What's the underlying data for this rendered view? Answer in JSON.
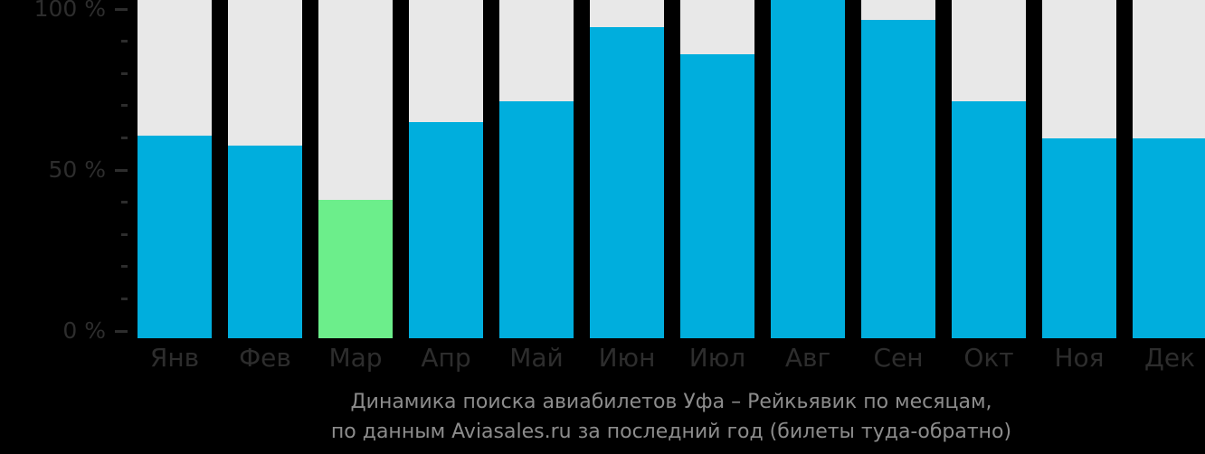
{
  "chart_data": {
    "type": "bar",
    "title": "Динамика поиска авиабилетов Уфа – Рейкьявик по месяцам, по данным Aviasales.ru за последний год (билеты туда-обратно)",
    "categories": [
      "Янв",
      "Фев",
      "Мар",
      "Апр",
      "Май",
      "Июн",
      "Июл",
      "Авг",
      "Сен",
      "Окт",
      "Ноя",
      "Дек"
    ],
    "values": [
      60,
      57,
      41,
      64,
      70,
      92,
      84,
      100,
      94,
      70,
      59,
      59
    ],
    "unit": "%",
    "xlabel": "",
    "ylabel": "",
    "ylim": [
      0,
      100
    ],
    "grid": false,
    "legend": null,
    "highlight_category": "Мар",
    "y_ticks_major": [
      {
        "value": 100,
        "label": "100 %"
      },
      {
        "value": 50,
        "label": "50 %"
      },
      {
        "value": 0,
        "label": "0 %"
      }
    ],
    "y_ticks_minor": [
      90,
      80,
      70,
      60,
      40,
      30,
      20,
      10
    ],
    "colors": {
      "bar": "#00aedd",
      "bar_highlight": "#6cee8b",
      "column_background": "#e8e8e8",
      "page_background": "#000000",
      "axis_text": "#2d2d2d",
      "caption_text": "#8c8c8c"
    }
  },
  "caption": {
    "line1": "Динамика поиска авиабилетов Уфа – Рейкьявик по месяцам,",
    "line2": "по данным Aviasales.ru за последний год (билеты туда-обратно)"
  }
}
